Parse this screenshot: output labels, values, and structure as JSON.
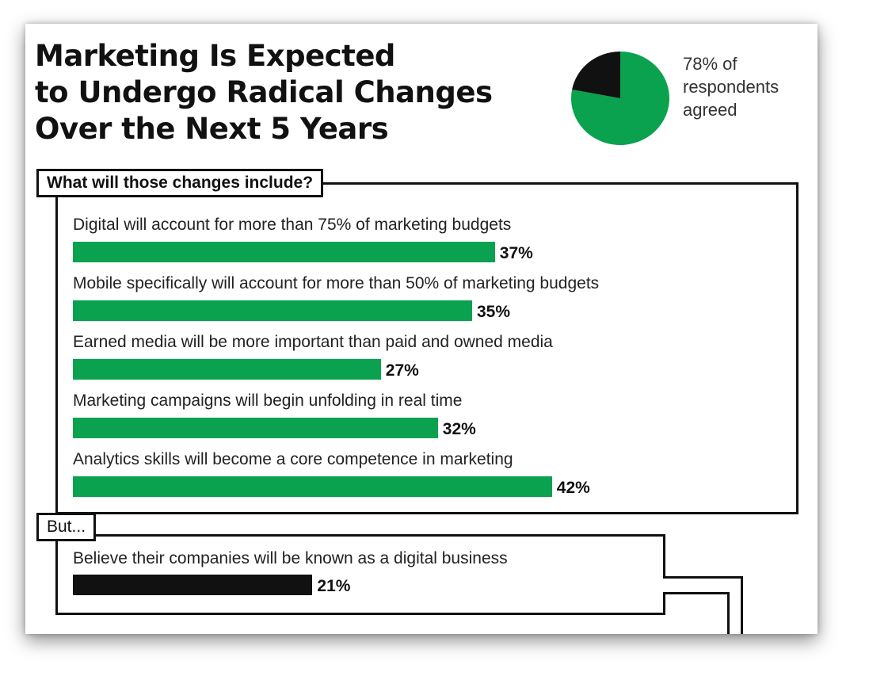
{
  "title_lines": [
    "Marketing Is Expected",
    "to Undergo Radical Changes",
    "Over the Next 5 Years"
  ],
  "pie_caption_lines": [
    "78% of",
    "respondents",
    "agreed"
  ],
  "colors": {
    "accent": "#0aa14f",
    "dark": "#111111"
  },
  "changes_heading": "What will those changes include?",
  "but_heading": "But...",
  "chart_data": [
    {
      "type": "pie",
      "values": [
        78,
        22
      ],
      "colors": [
        "#0aa14f",
        "#111111"
      ]
    },
    {
      "type": "bar",
      "orientation": "horizontal",
      "title": "What will those changes include?",
      "categories": [
        "Digital will account for more than 75% of marketing budgets",
        "Mobile specifically will account for more than 50% of marketing budgets",
        "Earned media will be more important than paid and owned media",
        "Marketing campaigns will begin unfolding in real time",
        "Analytics skills will become a core competence in marketing"
      ],
      "values": [
        37,
        35,
        27,
        32,
        42
      ],
      "value_labels": [
        "37%",
        "35%",
        "27%",
        "32%",
        "42%"
      ],
      "unit": "%",
      "color": "#0aa14f"
    },
    {
      "type": "bar",
      "orientation": "horizontal",
      "title": "But...",
      "categories": [
        "Believe their companies will be known as a digital business"
      ],
      "values": [
        21
      ],
      "value_labels": [
        "21%"
      ],
      "unit": "%",
      "color": "#111111"
    }
  ]
}
